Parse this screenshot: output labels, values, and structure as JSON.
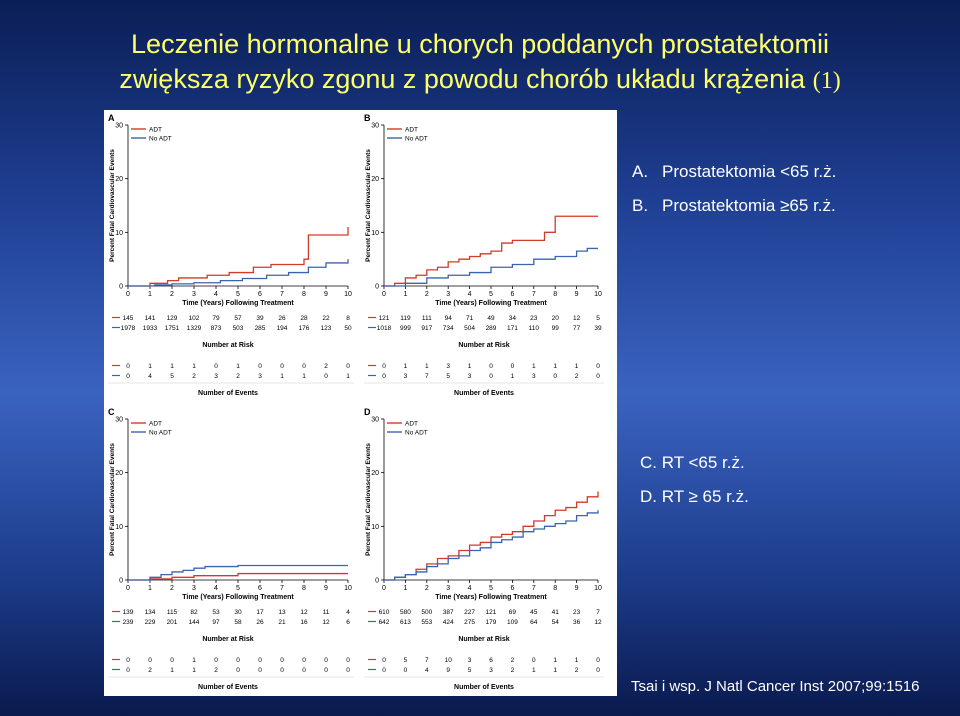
{
  "slide": {
    "title_line1": "Leczenie hormonalne u chorych poddanych prostatektomii",
    "title_line2": "zwiększa ryzyko zgonu z powodu chorób układu krążenia",
    "title_ref": "(1)",
    "side_notes": [
      {
        "key": "A.",
        "text": "Prostatektomia <65 r.ż."
      },
      {
        "key": "B.",
        "text": "Prostatektomia ≥65 r.ż."
      },
      {
        "key": "",
        "text": "C. RT <65 r.ż."
      },
      {
        "key": "",
        "text": "D. RT ≥ 65 r.ż."
      }
    ],
    "citation": "Tsai i wsp. J Natl Cancer Inst 2007;99:1516"
  },
  "colors": {
    "adt": "#d23a2a",
    "no_adt": "#3a64b0",
    "title": "#ffff66"
  },
  "chart_data": [
    {
      "panel": "A",
      "type": "line",
      "xlabel": "Time (Years) Following Treatment",
      "ylabel": "Percent Fatal Cardiovascular Events",
      "xlim": [
        0,
        10
      ],
      "ylim": [
        0,
        30
      ],
      "x_ticks": [
        0,
        1,
        2,
        3,
        4,
        5,
        6,
        7,
        8,
        9,
        10
      ],
      "y_ticks": [
        0,
        10,
        20,
        30
      ],
      "legend": [
        "ADT",
        "No ADT"
      ],
      "legend_position": "top-left",
      "series": [
        {
          "name": "ADT",
          "x": [
            0,
            1,
            1.8,
            2.3,
            3.6,
            4.6,
            5.7,
            6.5,
            7.8,
            8,
            8.2,
            10
          ],
          "y": [
            0,
            0.5,
            1,
            1.5,
            2,
            2.5,
            3.5,
            4,
            4,
            5,
            9.5,
            11
          ]
        },
        {
          "name": "No ADT",
          "x": [
            0,
            1.2,
            2,
            3,
            4.2,
            5.2,
            6.3,
            7.3,
            8.2,
            9,
            10
          ],
          "y": [
            0,
            0.2,
            0.4,
            0.6,
            1,
            1.4,
            2,
            2.5,
            3.5,
            4.3,
            5
          ]
        }
      ],
      "risk_title": "Number at Risk",
      "risk": [
        [
          "145",
          "141",
          "129",
          "102",
          "79",
          "57",
          "39",
          "26",
          "28",
          "22",
          "8"
        ],
        [
          "1978",
          "1933",
          "1751",
          "1329",
          "873",
          "503",
          "285",
          "194",
          "176",
          "123",
          "50"
        ]
      ],
      "events_title": "Number of Events",
      "events": [
        [
          "0",
          "1",
          "1",
          "1",
          "0",
          "1",
          "0",
          "0",
          "0",
          "2",
          "0"
        ],
        [
          "0",
          "4",
          "5",
          "2",
          "3",
          "2",
          "3",
          "1",
          "1",
          "0",
          "1"
        ]
      ]
    },
    {
      "panel": "B",
      "type": "line",
      "xlabel": "Time (Years) Following Treatment",
      "ylabel": "Percent Fatal Cardiovascular Events",
      "xlim": [
        0,
        10
      ],
      "ylim": [
        0,
        30
      ],
      "x_ticks": [
        0,
        1,
        2,
        3,
        4,
        5,
        6,
        7,
        8,
        9,
        10
      ],
      "y_ticks": [
        0,
        10,
        20,
        30
      ],
      "legend": [
        "ADT",
        "No ADT"
      ],
      "legend_position": "top-left",
      "series": [
        {
          "name": "ADT",
          "x": [
            0,
            0.5,
            1,
            1.5,
            2,
            2.5,
            3,
            3.5,
            4,
            4.5,
            5,
            5.5,
            6,
            6.3,
            7.5,
            8,
            10
          ],
          "y": [
            0,
            0.5,
            1.5,
            2,
            3,
            3.5,
            4.5,
            5,
            5.5,
            6,
            6.5,
            8,
            8.5,
            8.5,
            10,
            13,
            13
          ]
        },
        {
          "name": "No ADT",
          "x": [
            0,
            1,
            2,
            3,
            4,
            5,
            6,
            7,
            8,
            9,
            9.5,
            10
          ],
          "y": [
            0,
            0.5,
            1.5,
            2,
            2.5,
            3.5,
            4,
            5,
            5.5,
            6.5,
            7,
            7
          ]
        }
      ],
      "risk_title": "Number at Risk",
      "risk": [
        [
          "121",
          "119",
          "111",
          "94",
          "71",
          "49",
          "34",
          "23",
          "20",
          "12",
          "5"
        ],
        [
          "1018",
          "999",
          "917",
          "734",
          "504",
          "289",
          "171",
          "110",
          "99",
          "77",
          "39"
        ]
      ],
      "events_title": "Number of Events",
      "events": [
        [
          "0",
          "1",
          "1",
          "3",
          "1",
          "0",
          "0",
          "1",
          "1",
          "1",
          "0"
        ],
        [
          "0",
          "3",
          "7",
          "5",
          "3",
          "0",
          "1",
          "3",
          "0",
          "2",
          "0"
        ]
      ]
    },
    {
      "panel": "C",
      "type": "line",
      "xlabel": "Time (Years) Following Treatment",
      "ylabel": "Percent Fatal Cardiovascular Events",
      "xlim": [
        0,
        10
      ],
      "ylim": [
        0,
        30
      ],
      "x_ticks": [
        0,
        1,
        2,
        3,
        4,
        5,
        6,
        7,
        8,
        9,
        10
      ],
      "y_ticks": [
        0,
        10,
        20,
        30
      ],
      "legend": [
        "ADT",
        "No ADT"
      ],
      "legend_position": "top-left",
      "series": [
        {
          "name": "ADT",
          "x": [
            0,
            1,
            2,
            3,
            5,
            10
          ],
          "y": [
            0,
            0.2,
            0.5,
            0.8,
            1.2,
            1.2
          ]
        },
        {
          "name": "No ADT",
          "x": [
            0,
            1,
            1.5,
            2,
            2.5,
            3,
            3.5,
            5,
            10
          ],
          "y": [
            0,
            0.5,
            1,
            1.5,
            1.8,
            2.2,
            2.5,
            2.7,
            2.7
          ]
        }
      ],
      "risk_title": "Number at Risk",
      "risk": [
        [
          "139",
          "134",
          "115",
          "82",
          "53",
          "30",
          "17",
          "13",
          "12",
          "11",
          "4"
        ],
        [
          "239",
          "229",
          "201",
          "144",
          "97",
          "58",
          "26",
          "21",
          "16",
          "12",
          "6"
        ]
      ],
      "events_title": "Number of Events",
      "events": [
        [
          "0",
          "0",
          "0",
          "1",
          "0",
          "0",
          "0",
          "0",
          "0",
          "0",
          "0"
        ],
        [
          "0",
          "2",
          "1",
          "1",
          "2",
          "0",
          "0",
          "0",
          "0",
          "0",
          "0"
        ]
      ]
    },
    {
      "panel": "D",
      "type": "line",
      "xlabel": "Time (Years) Following Treatment",
      "ylabel": "Percent Fatal Cardiovascular Events",
      "xlim": [
        0,
        10
      ],
      "ylim": [
        0,
        30
      ],
      "x_ticks": [
        0,
        1,
        2,
        3,
        4,
        5,
        6,
        7,
        8,
        9,
        10
      ],
      "y_ticks": [
        0,
        10,
        20,
        30
      ],
      "legend": [
        "ADT",
        "No ADT"
      ],
      "legend_position": "top-left",
      "series": [
        {
          "name": "ADT",
          "x": [
            0,
            0.5,
            1,
            1.5,
            2,
            2.5,
            3,
            3.5,
            4,
            4.5,
            5,
            5.5,
            6,
            6.5,
            7,
            7.5,
            8,
            8.5,
            9,
            9.5,
            10
          ],
          "y": [
            0,
            0.5,
            1,
            2,
            3,
            4,
            4.5,
            5.5,
            6.5,
            7,
            8,
            8.5,
            9,
            10,
            11,
            12,
            13,
            13.5,
            14.5,
            15.5,
            16.5
          ]
        },
        {
          "name": "No ADT",
          "x": [
            0,
            0.5,
            1,
            1.5,
            2,
            2.5,
            3,
            3.5,
            4,
            4.5,
            5,
            5.5,
            6,
            6.5,
            7,
            7.5,
            8,
            8.5,
            9,
            9.5,
            10
          ],
          "y": [
            0,
            0.5,
            1,
            1.5,
            2.5,
            3,
            4,
            4.5,
            5.5,
            6,
            7,
            7.5,
            8,
            9,
            9.5,
            10,
            10.5,
            11,
            12,
            12.5,
            13
          ]
        }
      ],
      "risk_title": "Number at Risk",
      "risk": [
        [
          "610",
          "580",
          "500",
          "387",
          "227",
          "121",
          "69",
          "45",
          "41",
          "23",
          "7"
        ],
        [
          "642",
          "613",
          "553",
          "424",
          "275",
          "179",
          "109",
          "64",
          "54",
          "36",
          "12"
        ]
      ],
      "events_title": "Number of Events",
      "events": [
        [
          "0",
          "5",
          "7",
          "10",
          "3",
          "6",
          "2",
          "0",
          "1",
          "1",
          "0"
        ],
        [
          "0",
          "0",
          "4",
          "9",
          "5",
          "3",
          "2",
          "1",
          "1",
          "2",
          "0"
        ]
      ]
    }
  ]
}
